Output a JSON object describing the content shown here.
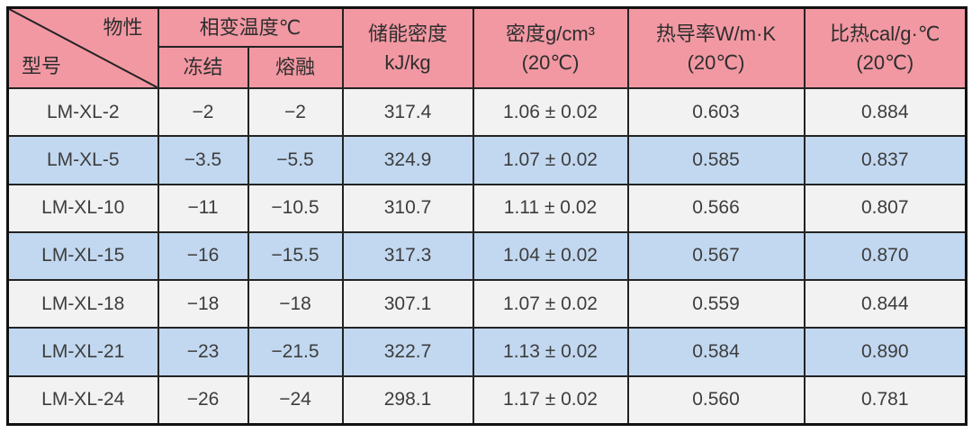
{
  "colors": {
    "header_pink": "#f298a3",
    "row_blue": "#c2d8f0",
    "row_white": "#f2f2f2",
    "border": "#232323",
    "text": "#3d3d3d"
  },
  "table": {
    "corner_top_right": "物性",
    "corner_bottom_left": "型号",
    "header": {
      "phase_change": "相变温度℃",
      "freeze": "冻结",
      "melt": "熔融",
      "energy_line1": "储能密度",
      "energy_line2": "kJ/kg",
      "density_line1": "密度g/cm³",
      "density_line2": "(20℃)",
      "conductivity_line1": "热导率W/m·K",
      "conductivity_line2": "(20℃)",
      "specific_heat_line1": "比热cal/g·℃",
      "specific_heat_line2": "(20℃)"
    },
    "cell_names": [
      "model-cell",
      "freeze-temp-cell",
      "melt-temp-cell",
      "energy-density-cell",
      "density-cell",
      "thermal-conductivity-cell",
      "specific-heat-cell"
    ],
    "rows": [
      [
        "LM-XL-2",
        "−2",
        "−2",
        "317.4",
        "1.06 ± 0.02",
        "0.603",
        "0.884"
      ],
      [
        "LM-XL-5",
        "−3.5",
        "−5.5",
        "324.9",
        "1.07 ± 0.02",
        "0.585",
        "0.837"
      ],
      [
        "LM-XL-10",
        "−11",
        "−10.5",
        "310.7",
        "1.11 ± 0.02",
        "0.566",
        "0.807"
      ],
      [
        "LM-XL-15",
        "−16",
        "−15.5",
        "317.3",
        "1.04 ± 0.02",
        "0.567",
        "0.870"
      ],
      [
        "LM-XL-18",
        "−18",
        "−18",
        "307.1",
        "1.07 ± 0.02",
        "0.559",
        "0.844"
      ],
      [
        "LM-XL-21",
        "−23",
        "−21.5",
        "322.7",
        "1.13 ± 0.02",
        "0.584",
        "0.890"
      ],
      [
        "LM-XL-24",
        "−26",
        "−24",
        "298.1",
        "1.17 ± 0.02",
        "0.560",
        "0.781"
      ]
    ]
  },
  "chart_data": {
    "type": "table",
    "columns": [
      "型号",
      "相变温度℃ 冻结",
      "相变温度℃ 熔融",
      "储能密度 kJ/kg",
      "密度g/cm³ (20℃)",
      "热导率W/m·K (20℃)",
      "比热cal/g·℃ (20℃)"
    ],
    "rows": [
      [
        "LM-XL-2",
        -2,
        -2,
        317.4,
        "1.06 ± 0.02",
        0.603,
        0.884
      ],
      [
        "LM-XL-5",
        -3.5,
        -5.5,
        324.9,
        "1.07 ± 0.02",
        0.585,
        0.837
      ],
      [
        "LM-XL-10",
        -11,
        -10.5,
        310.7,
        "1.11 ± 0.02",
        0.566,
        0.807
      ],
      [
        "LM-XL-15",
        -16,
        -15.5,
        317.3,
        "1.04 ± 0.02",
        0.567,
        0.87
      ],
      [
        "LM-XL-18",
        -18,
        -18,
        307.1,
        "1.07 ± 0.02",
        0.559,
        0.844
      ],
      [
        "LM-XL-21",
        -23,
        -21.5,
        322.7,
        "1.13 ± 0.02",
        0.584,
        0.89
      ],
      [
        "LM-XL-24",
        -26,
        -24,
        298.1,
        "1.17 ± 0.02",
        0.56,
        0.781
      ]
    ]
  }
}
